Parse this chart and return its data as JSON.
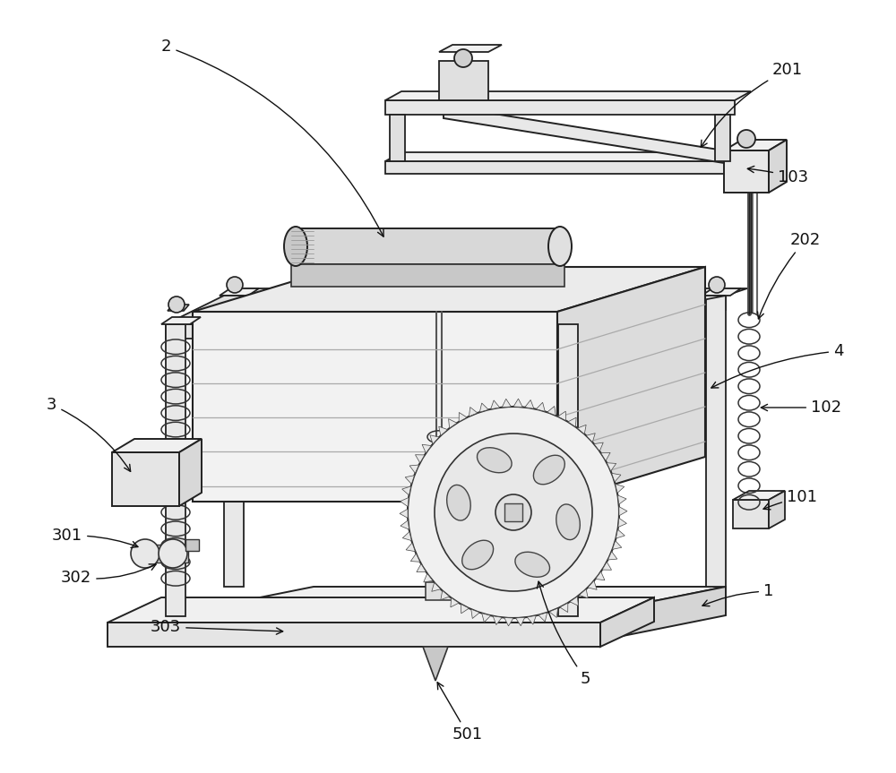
{
  "bg_color": "#ffffff",
  "line_color": "#222222",
  "lw_main": 1.4,
  "lw_thin": 1.0,
  "ann_fontsize": 13
}
